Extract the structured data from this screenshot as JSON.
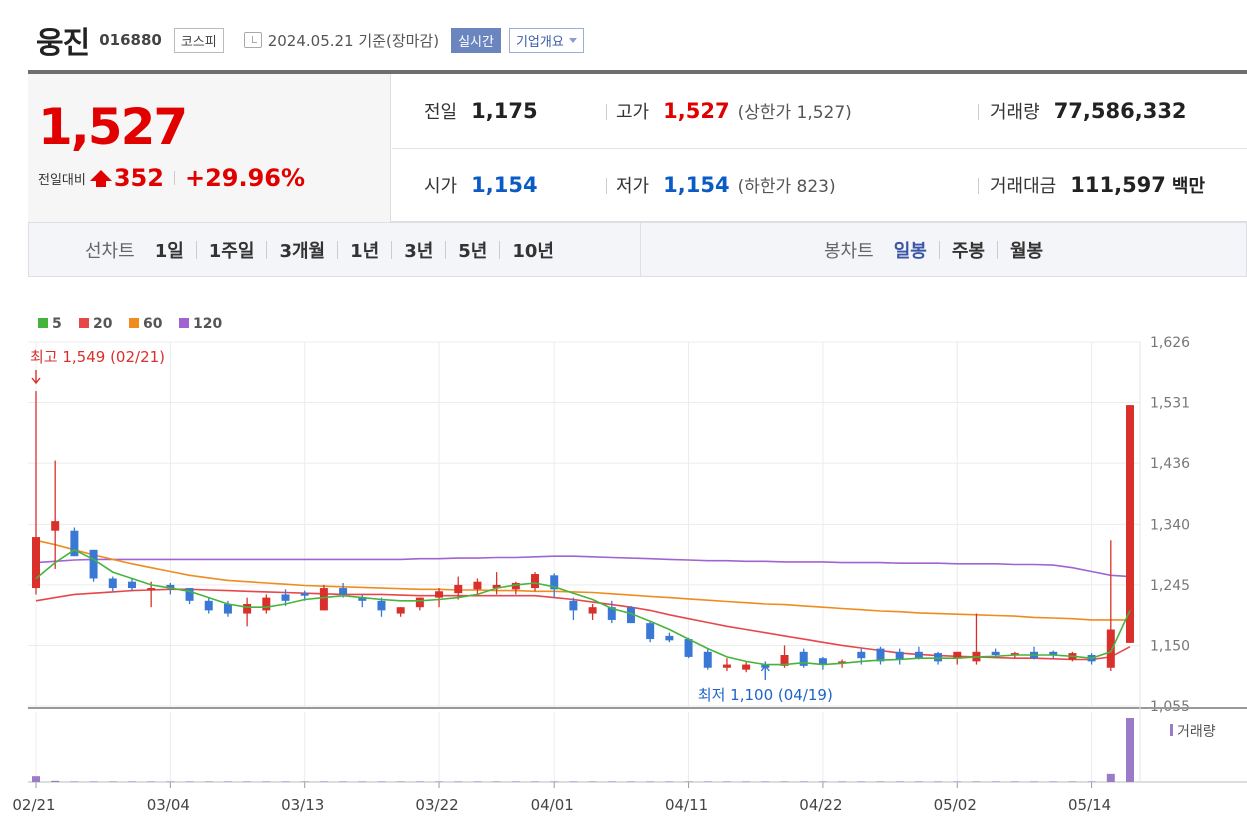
{
  "header": {
    "name": "웅진",
    "code": "016880",
    "market": "코스피",
    "date": "2024.05.21 기준(장마감)",
    "realtime": "실시간",
    "overview": "기업개요"
  },
  "price": {
    "current": "1,527",
    "change_label": "전일대비",
    "change": "352",
    "change_pct": "+29.96%"
  },
  "stats": {
    "prev_close": {
      "label": "전일",
      "value": "1,175"
    },
    "high": {
      "label": "고가",
      "value": "1,527",
      "sub": "(상한가 1,527)"
    },
    "volume": {
      "label": "거래량",
      "value": "77,586,332"
    },
    "open": {
      "label": "시가",
      "value": "1,154"
    },
    "low": {
      "label": "저가",
      "value": "1,154",
      "sub": "(하한가 823)"
    },
    "amount": {
      "label": "거래대금",
      "value": "111,597",
      "unit": "백만"
    }
  },
  "line_tabs": {
    "title": "선차트",
    "items": [
      "1일",
      "1주일",
      "3개월",
      "1년",
      "3년",
      "5년",
      "10년"
    ]
  },
  "candle_tabs": {
    "title": "봉차트",
    "items": [
      "일봉",
      "주봉",
      "월봉"
    ],
    "selected": 0
  },
  "colors": {
    "up": "#d9302c",
    "down": "#3a78d6",
    "ma5": "#46b43c",
    "ma20": "#e8474a",
    "ma60": "#f08c1e",
    "ma120": "#a064d2",
    "volume": "#9b7bc7"
  },
  "chart_data": {
    "type": "candlestick",
    "legend": [
      "5",
      "20",
      "60",
      "120"
    ],
    "y_ticks": [
      "1,626",
      "1,531",
      "1,436",
      "1,340",
      "1,245",
      "1,150",
      "1,055"
    ],
    "ylim": [
      1055,
      1626
    ],
    "x_ticks": [
      "02/21",
      "03/04",
      "03/13",
      "03/22",
      "04/01",
      "04/11",
      "04/22",
      "05/02",
      "05/14"
    ],
    "x_tick_index": [
      0,
      7,
      14,
      21,
      27,
      34,
      41,
      48,
      55
    ],
    "max_annotation": "최고 1,549 (02/21)",
    "min_annotation": "최저 1,100 (04/19)",
    "volume_label": "거래량",
    "candles": [
      {
        "o": 1240,
        "h": 1549,
        "l": 1230,
        "c": 1320
      },
      {
        "o": 1330,
        "h": 1440,
        "l": 1270,
        "c": 1345
      },
      {
        "o": 1330,
        "h": 1335,
        "l": 1290,
        "c": 1290
      },
      {
        "o": 1300,
        "h": 1300,
        "l": 1250,
        "c": 1255
      },
      {
        "o": 1255,
        "h": 1258,
        "l": 1235,
        "c": 1240
      },
      {
        "o": 1250,
        "h": 1255,
        "l": 1235,
        "c": 1240
      },
      {
        "o": 1240,
        "h": 1250,
        "l": 1210,
        "c": 1240
      },
      {
        "o": 1245,
        "h": 1248,
        "l": 1230,
        "c": 1240
      },
      {
        "o": 1240,
        "h": 1240,
        "l": 1215,
        "c": 1220
      },
      {
        "o": 1220,
        "h": 1225,
        "l": 1200,
        "c": 1205
      },
      {
        "o": 1215,
        "h": 1220,
        "l": 1195,
        "c": 1200
      },
      {
        "o": 1200,
        "h": 1225,
        "l": 1180,
        "c": 1215
      },
      {
        "o": 1205,
        "h": 1230,
        "l": 1200,
        "c": 1225
      },
      {
        "o": 1230,
        "h": 1238,
        "l": 1212,
        "c": 1220
      },
      {
        "o": 1232,
        "h": 1236,
        "l": 1220,
        "c": 1228
      },
      {
        "o": 1205,
        "h": 1245,
        "l": 1205,
        "c": 1240
      },
      {
        "o": 1240,
        "h": 1248,
        "l": 1225,
        "c": 1230
      },
      {
        "o": 1225,
        "h": 1230,
        "l": 1210,
        "c": 1220
      },
      {
        "o": 1220,
        "h": 1225,
        "l": 1195,
        "c": 1205
      },
      {
        "o": 1200,
        "h": 1210,
        "l": 1195,
        "c": 1210
      },
      {
        "o": 1210,
        "h": 1225,
        "l": 1205,
        "c": 1225
      },
      {
        "o": 1225,
        "h": 1240,
        "l": 1210,
        "c": 1235
      },
      {
        "o": 1232,
        "h": 1258,
        "l": 1222,
        "c": 1245
      },
      {
        "o": 1238,
        "h": 1255,
        "l": 1230,
        "c": 1250
      },
      {
        "o": 1240,
        "h": 1265,
        "l": 1230,
        "c": 1245
      },
      {
        "o": 1238,
        "h": 1250,
        "l": 1230,
        "c": 1248
      },
      {
        "o": 1240,
        "h": 1265,
        "l": 1235,
        "c": 1262
      },
      {
        "o": 1260,
        "h": 1263,
        "l": 1225,
        "c": 1238
      },
      {
        "o": 1220,
        "h": 1225,
        "l": 1190,
        "c": 1205
      },
      {
        "o": 1200,
        "h": 1215,
        "l": 1190,
        "c": 1210
      },
      {
        "o": 1210,
        "h": 1220,
        "l": 1185,
        "c": 1190
      },
      {
        "o": 1210,
        "h": 1212,
        "l": 1185,
        "c": 1185
      },
      {
        "o": 1185,
        "h": 1188,
        "l": 1155,
        "c": 1160
      },
      {
        "o": 1165,
        "h": 1170,
        "l": 1155,
        "c": 1158
      },
      {
        "o": 1160,
        "h": 1162,
        "l": 1130,
        "c": 1132
      },
      {
        "o": 1140,
        "h": 1145,
        "l": 1112,
        "c": 1115
      },
      {
        "o": 1115,
        "h": 1130,
        "l": 1110,
        "c": 1120
      },
      {
        "o": 1112,
        "h": 1125,
        "l": 1108,
        "c": 1120
      },
      {
        "o": 1120,
        "h": 1125,
        "l": 1100,
        "c": 1115
      },
      {
        "o": 1118,
        "h": 1150,
        "l": 1115,
        "c": 1135
      },
      {
        "o": 1140,
        "h": 1145,
        "l": 1115,
        "c": 1118
      },
      {
        "o": 1130,
        "h": 1132,
        "l": 1112,
        "c": 1120
      },
      {
        "o": 1125,
        "h": 1128,
        "l": 1115,
        "c": 1125
      },
      {
        "o": 1140,
        "h": 1145,
        "l": 1120,
        "c": 1130
      },
      {
        "o": 1145,
        "h": 1148,
        "l": 1120,
        "c": 1125
      },
      {
        "o": 1140,
        "h": 1145,
        "l": 1120,
        "c": 1128
      },
      {
        "o": 1140,
        "h": 1148,
        "l": 1128,
        "c": 1130
      },
      {
        "o": 1138,
        "h": 1140,
        "l": 1120,
        "c": 1125
      },
      {
        "o": 1130,
        "h": 1140,
        "l": 1120,
        "c": 1140
      },
      {
        "o": 1125,
        "h": 1200,
        "l": 1120,
        "c": 1140
      },
      {
        "o": 1140,
        "h": 1145,
        "l": 1130,
        "c": 1135
      },
      {
        "o": 1135,
        "h": 1140,
        "l": 1130,
        "c": 1138
      },
      {
        "o": 1140,
        "h": 1148,
        "l": 1128,
        "c": 1130
      },
      {
        "o": 1140,
        "h": 1142,
        "l": 1130,
        "c": 1135
      },
      {
        "o": 1128,
        "h": 1140,
        "l": 1125,
        "c": 1138
      },
      {
        "o": 1135,
        "h": 1138,
        "l": 1120,
        "c": 1125
      },
      {
        "o": 1115,
        "h": 1315,
        "l": 1110,
        "c": 1175
      },
      {
        "o": 1154,
        "h": 1527,
        "l": 1154,
        "c": 1527
      }
    ],
    "ma5": [
      1255,
      1280,
      1300,
      1285,
      1265,
      1255,
      1245,
      1240,
      1235,
      1225,
      1215,
      1210,
      1210,
      1215,
      1222,
      1225,
      1228,
      1225,
      1222,
      1220,
      1220,
      1222,
      1225,
      1230,
      1240,
      1245,
      1248,
      1242,
      1232,
      1222,
      1208,
      1200,
      1188,
      1175,
      1160,
      1145,
      1132,
      1125,
      1120,
      1120,
      1123,
      1120,
      1122,
      1125,
      1127,
      1128,
      1130,
      1130,
      1130,
      1132,
      1133,
      1135,
      1135,
      1135,
      1133,
      1130,
      1140,
      1205
    ],
    "ma20": [
      1220,
      1225,
      1230,
      1232,
      1234,
      1236,
      1237,
      1238,
      1238,
      1237,
      1236,
      1235,
      1234,
      1233,
      1232,
      1231,
      1230,
      1230,
      1230,
      1229,
      1228,
      1228,
      1228,
      1228,
      1228,
      1228,
      1228,
      1225,
      1222,
      1218,
      1214,
      1210,
      1205,
      1198,
      1192,
      1186,
      1180,
      1175,
      1170,
      1165,
      1160,
      1155,
      1150,
      1146,
      1142,
      1138,
      1136,
      1134,
      1133,
      1132,
      1131,
      1130,
      1130,
      1129,
      1128,
      1128,
      1132,
      1148
    ],
    "ma60": [
      1315,
      1308,
      1300,
      1292,
      1285,
      1278,
      1272,
      1266,
      1260,
      1256,
      1252,
      1250,
      1248,
      1246,
      1244,
      1243,
      1242,
      1241,
      1240,
      1239,
      1238,
      1238,
      1237,
      1237,
      1236,
      1236,
      1235,
      1235,
      1234,
      1233,
      1231,
      1229,
      1227,
      1225,
      1223,
      1221,
      1219,
      1217,
      1215,
      1214,
      1212,
      1210,
      1208,
      1206,
      1204,
      1203,
      1201,
      1200,
      1199,
      1198,
      1197,
      1196,
      1194,
      1193,
      1192,
      1190,
      1190,
      1190
    ],
    "ma120": [
      1280,
      1282,
      1284,
      1285,
      1285,
      1285,
      1285,
      1285,
      1285,
      1285,
      1285,
      1285,
      1285,
      1285,
      1285,
      1285,
      1285,
      1285,
      1285,
      1285,
      1286,
      1286,
      1287,
      1287,
      1288,
      1288,
      1289,
      1290,
      1290,
      1289,
      1288,
      1287,
      1286,
      1285,
      1284,
      1283,
      1283,
      1282,
      1282,
      1281,
      1281,
      1281,
      1280,
      1280,
      1280,
      1279,
      1279,
      1279,
      1278,
      1278,
      1278,
      1277,
      1277,
      1276,
      1272,
      1266,
      1260,
      1258
    ],
    "volume": [
      5,
      1,
      0.5,
      0.5,
      0.5,
      0.5,
      0.5,
      0.5,
      0.5,
      0.5,
      0.5,
      0.5,
      0.5,
      0.5,
      0.5,
      0.5,
      0.5,
      0.5,
      0.5,
      0.5,
      0.5,
      0.5,
      0.5,
      0.5,
      0.5,
      0.5,
      0.5,
      0.5,
      0.5,
      0.5,
      0.5,
      0.5,
      0.5,
      0.5,
      0.5,
      0.5,
      0.5,
      0.5,
      0.5,
      0.5,
      0.5,
      0.5,
      0.5,
      0.5,
      0.5,
      0.5,
      0.5,
      0.5,
      0.5,
      0.5,
      0.5,
      0.5,
      0.5,
      0.5,
      0.5,
      0.5,
      7,
      55
    ]
  }
}
